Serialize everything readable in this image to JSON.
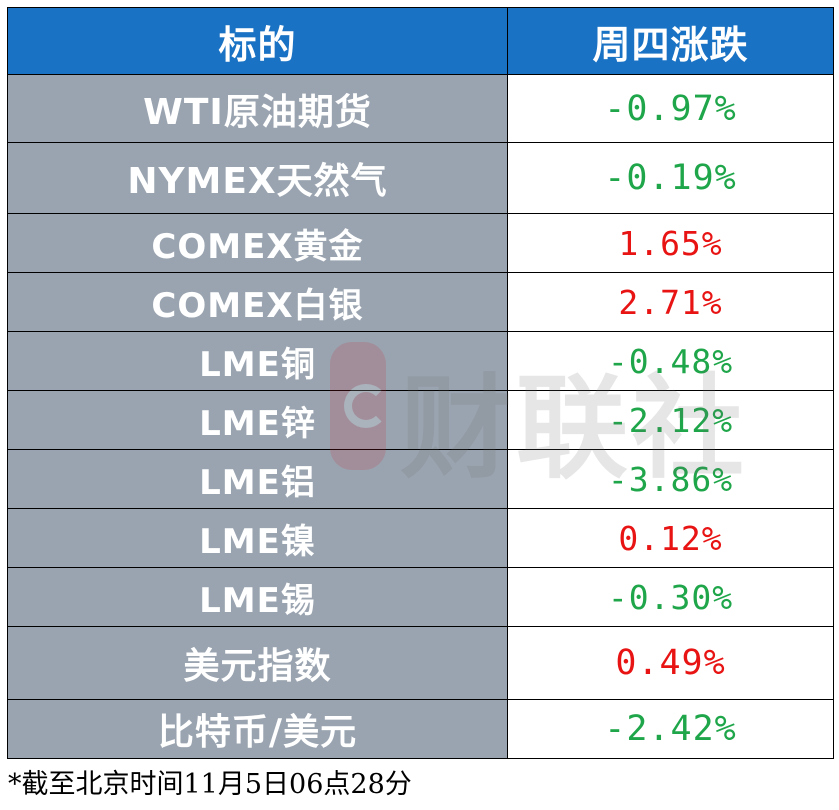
{
  "header": {
    "col1": "标的",
    "col2": "周四涨跌"
  },
  "rows": [
    {
      "name": "WTI原油期货",
      "value": "-0.97%",
      "direction": "down"
    },
    {
      "name": "NYMEX天然气",
      "value": "-0.19%",
      "direction": "down"
    },
    {
      "name": "COMEX黄金",
      "value": "1.65%",
      "direction": "up"
    },
    {
      "name": "COMEX白银",
      "value": "2.71%",
      "direction": "up"
    },
    {
      "name": "LME铜",
      "value": "-0.48%",
      "direction": "down"
    },
    {
      "name": "LME锌",
      "value": "-2.12%",
      "direction": "down"
    },
    {
      "name": "LME铝",
      "value": "-3.86%",
      "direction": "down"
    },
    {
      "name": "LME镍",
      "value": "0.12%",
      "direction": "up"
    },
    {
      "name": "LME锡",
      "value": "-0.30%",
      "direction": "down"
    },
    {
      "name": "美元指数",
      "value": "0.49%",
      "direction": "up"
    },
    {
      "name": "比特币/美元",
      "value": "-2.42%",
      "direction": "down"
    }
  ],
  "watermark": {
    "text": "财联社",
    "logo_icon": "cailian-e-logo-icon"
  },
  "footnote": "*截至北京时间11月5日06点28分",
  "colors": {
    "header_bg": "#1a72c4",
    "name_bg": "#9aa4b0",
    "up": "#e81414",
    "down": "#1fa64a"
  }
}
